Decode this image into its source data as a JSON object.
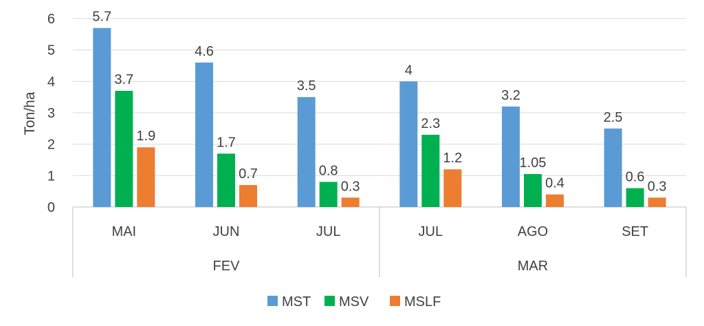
{
  "chart_data": {
    "type": "bar",
    "ylabel": "Ton/ha",
    "ylim": [
      0,
      6
    ],
    "yticks": [
      "0",
      "1",
      "2",
      "3",
      "4",
      "5",
      "6"
    ],
    "grid": true,
    "legend_position": "bottom",
    "groups": [
      {
        "label": "FEV",
        "categories": [
          "MAI",
          "JUN",
          "JUL"
        ]
      },
      {
        "label": "MAR",
        "categories": [
          "JUL",
          "AGO",
          "SET"
        ]
      }
    ],
    "categories": [
      "MAI",
      "JUN",
      "JUL",
      "JUL",
      "AGO",
      "SET"
    ],
    "series": [
      {
        "name": "MST",
        "color": "#5b9bd5",
        "values": [
          5.7,
          4.6,
          3.5,
          4,
          3.2,
          2.5
        ],
        "labels": [
          "5.7",
          "4.6",
          "3.5",
          "4",
          "3.2",
          "2.5"
        ]
      },
      {
        "name": "MSV",
        "color": "#00b050",
        "values": [
          3.7,
          1.7,
          0.8,
          2.3,
          1.05,
          0.6
        ],
        "labels": [
          "3.7",
          "1.7",
          "0.8",
          "2.3",
          "1.05",
          "0.6"
        ]
      },
      {
        "name": "MSLF",
        "color": "#ed7d31",
        "values": [
          1.9,
          0.7,
          0.3,
          1.2,
          0.4,
          0.3
        ],
        "labels": [
          "1.9",
          "0.7",
          "0.3",
          "1.2",
          "0.4",
          "0.3"
        ]
      }
    ]
  }
}
